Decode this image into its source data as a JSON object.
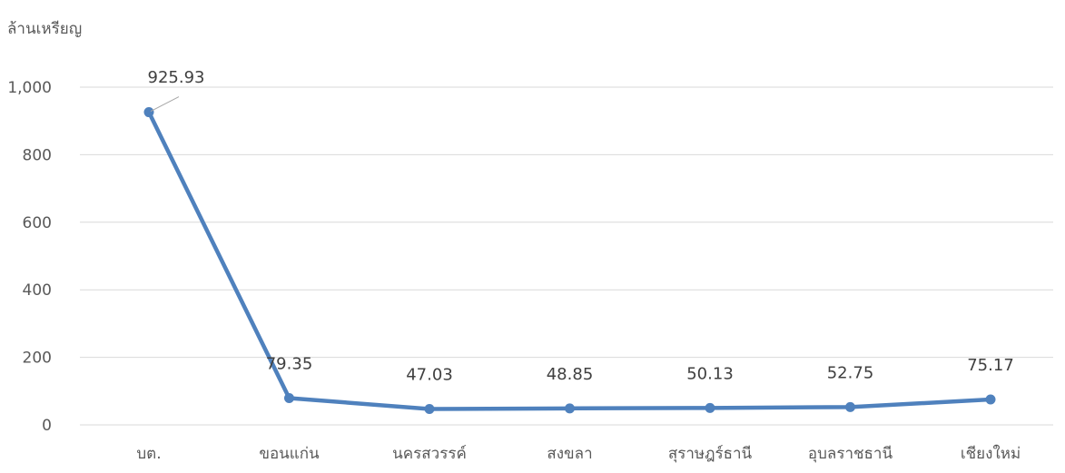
{
  "chart_data": {
    "type": "line",
    "ylabel": "ล้านเหรียญ",
    "categories": [
      "บต.",
      "ขอนแก่น",
      "นครสวรรค์",
      "สงขลา",
      "สุราษฎร์ธานี",
      "อุบลราชธานี",
      "เชียงใหม่"
    ],
    "series": [
      {
        "values": [
          925.93,
          79.35,
          47.03,
          48.85,
          50.13,
          52.75,
          75.17
        ],
        "labels": [
          "925.93",
          "79.35",
          "47.03",
          "48.85",
          "50.13",
          "52.75",
          "75.17"
        ]
      }
    ],
    "y_ticks": [
      0,
      200,
      400,
      600,
      800,
      1000
    ],
    "y_tick_labels": [
      "0",
      "200",
      "400",
      "600",
      "800",
      "1,000"
    ],
    "ylim": [
      0,
      1000
    ],
    "grid": true,
    "colors": {
      "line": "#4f81bd",
      "grid": "#d9d9d9",
      "leader": "#a6a6a6"
    }
  }
}
